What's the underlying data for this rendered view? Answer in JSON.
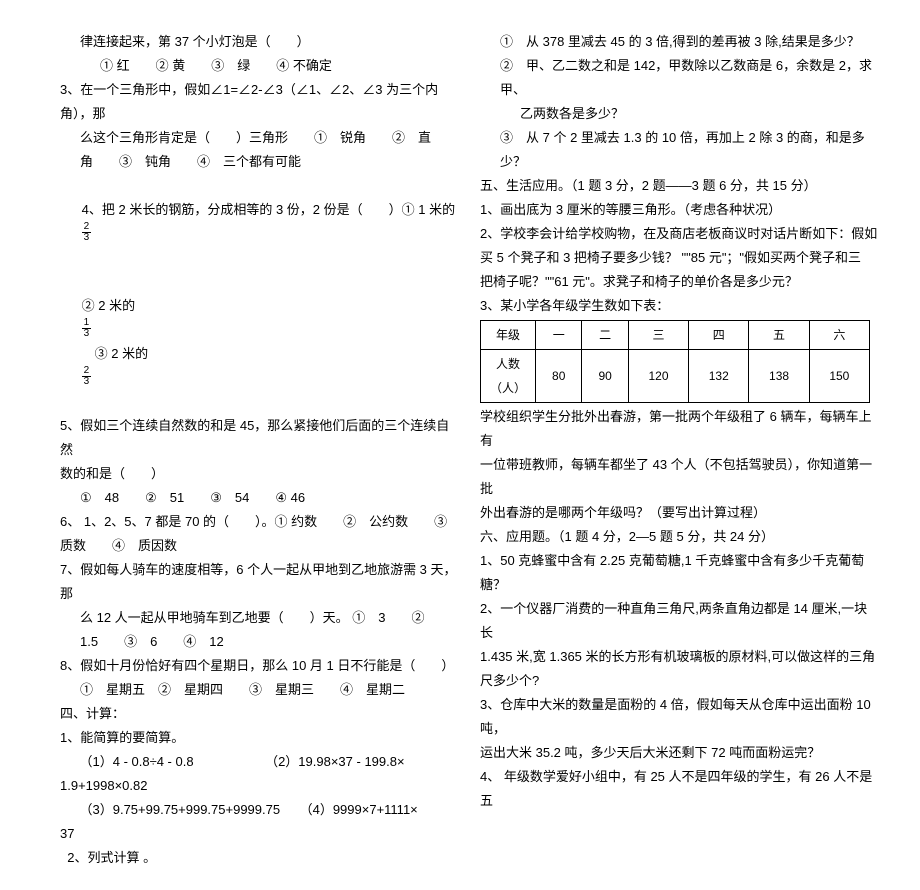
{
  "left": {
    "l1": "律连接起来，第 37 个小灯泡是（　　）",
    "l2": "① 红　　② 黄　　③　绿　　④ 不确定",
    "l3": "3、在一个三角形中，假如∠1=∠2-∠3（∠1、∠2、∠3 为三个内角），那",
    "l4": "么这个三角形肯定是（　　）三角形　　①　锐角　　②　直",
    "l5": "角　　③　钝角　　④　三个都有可能",
    "l6a": "4、把 2 米长的钢筋，分成相等的 3 份，2 份是（　　）① 1 米的",
    "l6frac1_n": "2",
    "l6frac1_d": "3",
    "l7a": "② 2 米的",
    "l7frac1_n": "1",
    "l7frac1_d": "3",
    "l7b": "　③ 2 米的",
    "l7frac2_n": "2",
    "l7frac2_d": "3",
    "l8": "5、假如三个连续自然数的和是 45，那么紧接他们后面的三个连续自然",
    "l9": "数的和是（　　）",
    "l10": "①　48　　②　51　　③　54　　④ 46",
    "l11": "6、 1、2、5、7 都是 70 的（　　）。① 约数　　②　公约数　　③",
    "l12": "质数　　④　质因数",
    "l13": "7、假如每人骑车的速度相等，6 个人一起从甲地到乙地旅游需 3 天，那",
    "l14": "么 12 人一起从甲地骑车到乙地要（　　）天。 ①　3　　②",
    "l15": "1.5　　③　6　　④　12",
    "l16": "8、假如十月份恰好有四个星期日，那么 10 月 1 日不行能是（　　）",
    "l17": "①　星期五　②　星期四　　③　星期三　　④　星期二",
    "l18": "四、计算：",
    "l19": "1、能简算的要简算。",
    "l20": "　　（1）4 - 0.8÷4 - 0.8　　　　　　（2）19.98×37 - 199.8×",
    "l21": "1.9+1998×0.82",
    "l22": "　　（3）9.75+99.75+999.75+9999.75　　（4）9999×7+1111×",
    "l23": "37",
    "l24": "  2、列式计算 。"
  },
  "right": {
    "r1": "①　从 378 里减去 45 的 3 倍,得到的差再被 3 除,结果是多少？",
    "r2": "②　甲、乙二数之和是 142，甲数除以乙数商是 6，余数是 2，求甲、",
    "r3": "乙两数各是多少？",
    "r4": "③　从 7 个 2 里减去 1.3 的 10 倍，再加上 2 除 3 的商，和是多少？",
    "r5": "五、生活应用。（1 题 3 分，2 题——3 题 6 分，共 15 分）",
    "r6": "1、画出底为 3 厘米的等腰三角形。（考虑各种状况）",
    "r7": "2、学校李会计给学校购物，在及商店老板商议时对话片断如下：假如",
    "r8": "买 5 个凳子和 3 把椅子要多少钱？ \"\"85 元\"；\"假如买两个凳子和三",
    "r9": "把椅子呢？\"\"61 元\"。求凳子和椅子的单价各是多少元？",
    "r10": "3、某小学各年级学生数如下表：",
    "table": {
      "h1": "年级",
      "h2": "一",
      "h3": "二",
      "h4": "三",
      "h5": "四",
      "h6": "五",
      "h7": "六",
      "r1": "人数",
      "r2": "80",
      "r3": "90",
      "r4": "120",
      "r5": "132",
      "r6": "138",
      "r7": "150",
      "rN": "（人）"
    },
    "r11": "学校组织学生分批外出春游，第一批两个年级租了 6 辆车，每辆车上有",
    "r12": "一位带班教师，每辆车都坐了 43 个人（不包括驾驶员），你知道第一批",
    "r13": "外出春游的是哪两个年级吗？（要写出计算过程）",
    "r14": "六、应用题。（1 题 4 分，2—5 题 5 分，共 24 分）",
    "r15": "1、50 克蜂蜜中含有 2.25 克葡萄糖,1 千克蜂蜜中含有多少千克葡萄糖？",
    "r16": "2、一个仪器厂消费的一种直角三角尺,两条直角边都是 14 厘米,一块长",
    "r17": "1.435 米,宽 1.365 米的长方形有机玻璃板的原材料,可以做这样的三角",
    "r18": "尺多少个?",
    "r19": "3、仓库中大米的数量是面粉的 4 倍，假如每天从仓库中运出面粉 10 吨，",
    "r20": "运出大米 35.2 吨，多少天后大米还剩下 72 吨而面粉运完？",
    "r21": "4、 年级数学爱好小组中，有 25 人不是四年级的学生，有 26 人不是五"
  }
}
